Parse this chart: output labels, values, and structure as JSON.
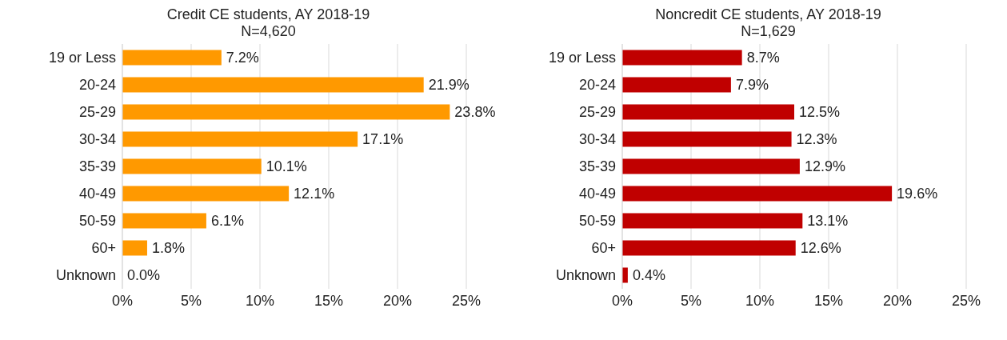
{
  "chart_data": [
    {
      "type": "bar",
      "orientation": "horizontal",
      "title": "Credit CE students, AY 2018-19",
      "subtitle": "N=4,620",
      "categories": [
        "19 or Less",
        "20-24",
        "25-29",
        "30-34",
        "35-39",
        "40-49",
        "50-59",
        "60+",
        "Unknown"
      ],
      "values": [
        7.2,
        21.9,
        23.8,
        17.1,
        10.1,
        12.1,
        6.1,
        1.8,
        0.0
      ],
      "color": "#ff9900",
      "value_labels": [
        "7.2%",
        "21.9%",
        "23.8%",
        "17.1%",
        "10.1%",
        "12.1%",
        "6.1%",
        "1.8%",
        "0.0%"
      ],
      "xlim": [
        0,
        25
      ],
      "xticks": [
        {
          "value": 0,
          "label": "0%"
        },
        {
          "value": 5,
          "label": "5%"
        },
        {
          "value": 10,
          "label": "10%"
        },
        {
          "value": 15,
          "label": "15%"
        },
        {
          "value": 20,
          "label": "20%"
        },
        {
          "value": 25,
          "label": "25%"
        }
      ],
      "grid": "x"
    },
    {
      "type": "bar",
      "orientation": "horizontal",
      "title": "Noncredit CE students, AY 2018-19",
      "subtitle": "N=1,629",
      "categories": [
        "19 or Less",
        "20-24",
        "25-29",
        "30-34",
        "35-39",
        "40-49",
        "50-59",
        "60+",
        "Unknown"
      ],
      "values": [
        8.7,
        7.9,
        12.5,
        12.3,
        12.9,
        19.6,
        13.1,
        12.6,
        0.4
      ],
      "color": "#c00000",
      "value_labels": [
        "8.7%",
        "7.9%",
        "12.5%",
        "12.3%",
        "12.9%",
        "19.6%",
        "13.1%",
        "12.6%",
        "0.4%"
      ],
      "xlim": [
        0,
        25
      ],
      "xticks": [
        {
          "value": 0,
          "label": "0%"
        },
        {
          "value": 5,
          "label": "5%"
        },
        {
          "value": 10,
          "label": "10%"
        },
        {
          "value": 15,
          "label": "15%"
        },
        {
          "value": 20,
          "label": "20%"
        },
        {
          "value": 25,
          "label": "25%"
        }
      ],
      "grid": "x"
    }
  ]
}
